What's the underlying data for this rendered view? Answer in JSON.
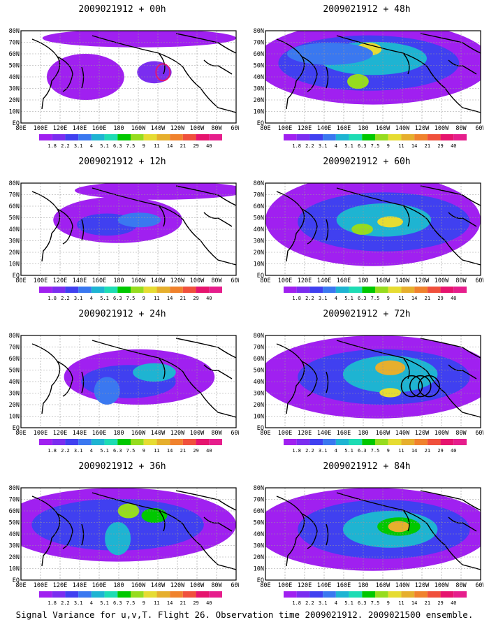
{
  "panels": [
    {
      "title": "2009021912 + 00h",
      "col": 0,
      "row": 0,
      "hasRing": true
    },
    {
      "title": "2009021912 + 12h",
      "col": 0,
      "row": 1
    },
    {
      "title": "2009021912 + 24h",
      "col": 0,
      "row": 2
    },
    {
      "title": "2009021912 + 36h",
      "col": 0,
      "row": 3
    },
    {
      "title": "2009021912 + 48h",
      "col": 1,
      "row": 0
    },
    {
      "title": "2009021912 + 60h",
      "col": 1,
      "row": 1
    },
    {
      "title": "2009021912 + 72h",
      "col": 1,
      "row": 2,
      "hasCircles": true
    },
    {
      "title": "2009021912 + 84h",
      "col": 1,
      "row": 3
    }
  ],
  "lat_labels": [
    "80N",
    "70N",
    "60N",
    "50N",
    "40N",
    "30N",
    "20N",
    "10N",
    "EQ"
  ],
  "lon_labels": [
    "80E",
    "100E",
    "120E",
    "140E",
    "160E",
    "180",
    "160W",
    "140W",
    "120W",
    "100W",
    "80W",
    "60W"
  ],
  "colorbar": {
    "labels": [
      "1.8",
      "2.2",
      "3.1",
      "4",
      "5.1",
      "6.3",
      "7.5",
      "9",
      "11",
      "14",
      "21",
      "29",
      "40"
    ],
    "colors": [
      "#a020f0",
      "#7b2df0",
      "#4040f0",
      "#3a78f0",
      "#1eb4d2",
      "#1edcb4",
      "#00c800",
      "#96dc1e",
      "#e6dc32",
      "#e6af2d",
      "#f0822d",
      "#f0503c",
      "#e6146e",
      "#e61e8c"
    ]
  },
  "footer": "Signal Variance for u,v,T. Flight 26. Observation time 2009021912. 2009021500 ensemble."
}
